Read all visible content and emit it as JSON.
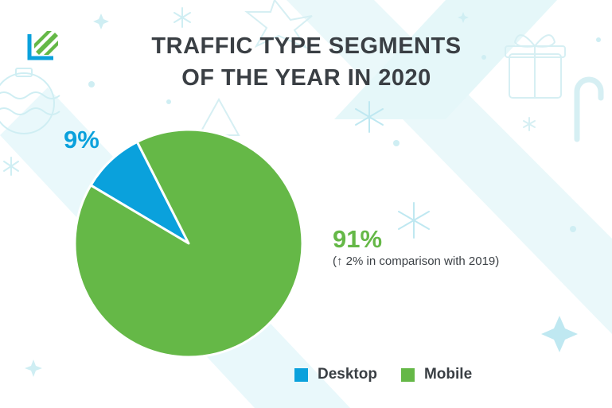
{
  "colors": {
    "desktop": "#0aa1dc",
    "mobile": "#65b847",
    "title": "#3a3f44"
  },
  "chart_data": {
    "type": "pie",
    "title_lines": [
      "TRAFFIC TYPE SEGMENTS",
      "OF THE YEAR IN 2020"
    ],
    "slices": [
      {
        "name": "Desktop",
        "value": 9,
        "label": "9%"
      },
      {
        "name": "Mobile",
        "value": 91,
        "label": "91%"
      }
    ],
    "annotation": "(↑ 2% in comparison with 2019)",
    "legend_placement": "bottom"
  }
}
